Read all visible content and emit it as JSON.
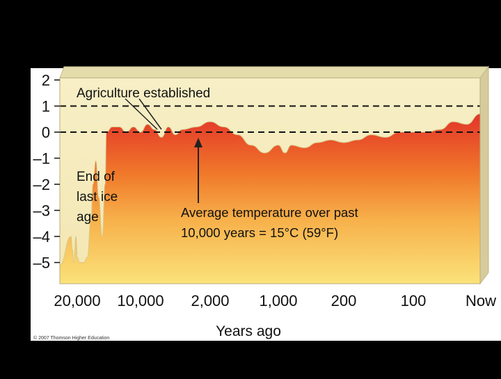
{
  "chart_data": {
    "type": "area",
    "title": "",
    "xlabel": "Years ago",
    "ylabel": "",
    "x_tick_labels": [
      "20,000",
      "10,000",
      "2,000",
      "1,000",
      "200",
      "100",
      "Now"
    ],
    "y_tick_labels": [
      "2",
      "1",
      "0",
      "–1",
      "–2",
      "–3",
      "–4",
      "–5"
    ],
    "y_ticks": [
      2,
      1,
      0,
      -1,
      -2,
      -3,
      -4,
      -5
    ],
    "ylim": [
      -5.6,
      2.3
    ],
    "x_axis_scale": "non-linear (tick positions evenly spaced)",
    "reference_lines": [
      1,
      0
    ],
    "series": [
      {
        "values_by_tick_fraction": [
          [
            0.0,
            -5.1
          ],
          [
            0.02,
            -4.0
          ],
          [
            0.04,
            -4.5
          ],
          [
            0.06,
            -5.0
          ],
          [
            0.09,
            -4.0
          ],
          [
            0.11,
            -4.8
          ],
          [
            0.14,
            -5.0
          ],
          [
            0.2,
            -5.0
          ],
          [
            0.25,
            -4.8
          ],
          [
            0.3,
            -3.4
          ],
          [
            0.33,
            -2.0
          ],
          [
            0.37,
            -1.1
          ],
          [
            0.41,
            -2.5
          ],
          [
            0.46,
            -4.0
          ],
          [
            0.5,
            -2.0
          ],
          [
            0.52,
            0.0
          ],
          [
            0.6,
            0.2
          ],
          [
            0.7,
            0.2
          ],
          [
            0.8,
            0.0
          ],
          [
            0.9,
            0.2
          ],
          [
            1.0,
            0.0
          ],
          [
            1.1,
            0.3
          ],
          [
            1.2,
            0.1
          ],
          [
            1.3,
            -0.2
          ],
          [
            1.4,
            0.2
          ],
          [
            1.5,
            -0.1
          ],
          [
            1.6,
            0.1
          ],
          [
            1.8,
            0.2
          ],
          [
            2.0,
            0.4
          ],
          [
            2.2,
            0.2
          ],
          [
            2.4,
            -0.1
          ],
          [
            2.6,
            -0.5
          ],
          [
            2.8,
            -0.8
          ],
          [
            3.0,
            -0.5
          ],
          [
            3.1,
            -0.8
          ],
          [
            3.2,
            -0.5
          ],
          [
            3.4,
            -0.6
          ],
          [
            3.6,
            -0.4
          ],
          [
            3.8,
            -0.3
          ],
          [
            4.0,
            -0.4
          ],
          [
            4.2,
            -0.3
          ],
          [
            4.4,
            -0.1
          ],
          [
            4.6,
            -0.2
          ],
          [
            4.8,
            0.0
          ],
          [
            5.0,
            0.0
          ],
          [
            5.2,
            0.0
          ],
          [
            5.4,
            0.1
          ],
          [
            5.6,
            0.4
          ],
          [
            5.8,
            0.3
          ],
          [
            6.0,
            0.7
          ]
        ]
      }
    ],
    "annotations": {
      "agriculture": "Agriculture established",
      "ice_age": [
        "End of",
        "last ice",
        "age"
      ],
      "average": [
        "Average temperature over past",
        "10,000 years = 15°C (59°F)"
      ]
    },
    "copyright": "© 2007 Thomson Higher Education"
  },
  "colors": {
    "background": "#000000",
    "panel": "#ffffff",
    "plot_fill": "#f6ecbd",
    "plot_top": "#e4dcab",
    "plot_side": "#d6cb9a",
    "area_top": "#e3342a",
    "area_mid": "#f0782a",
    "area_low": "#f7b04a",
    "area_bottom": "#fbe27a",
    "dashed_line": "#111111"
  }
}
